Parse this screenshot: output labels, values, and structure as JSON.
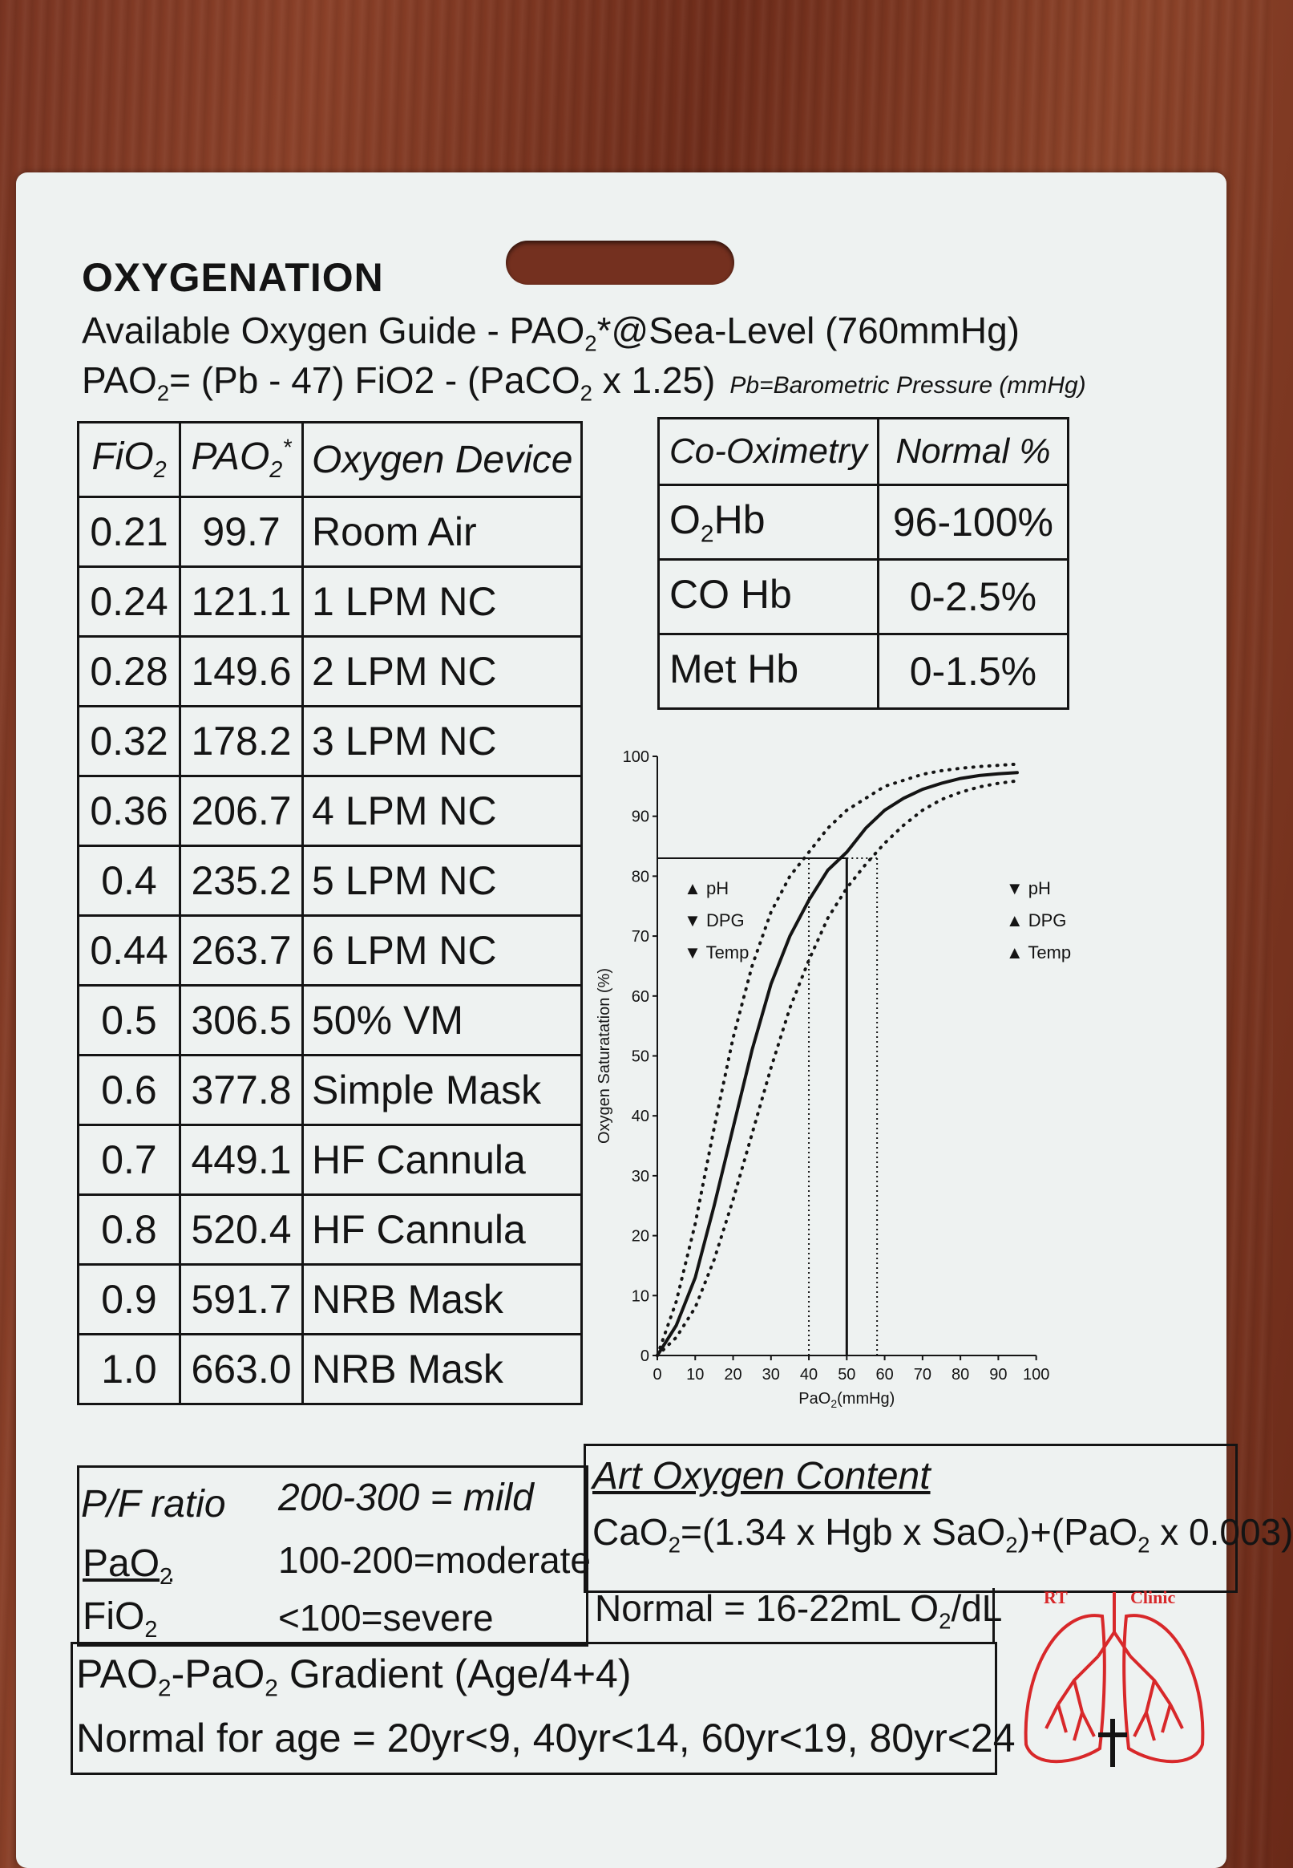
{
  "header": {
    "title": "OXYGENATION",
    "line1_prefix": "Available Oxygen Guide - PAO",
    "line1_sub": "2",
    "line1_suffix": "*@Sea-Level (760mmHg)",
    "line2_a": "PAO",
    "line2_sub1": "2",
    "line2_b": "= (Pb - 47) FiO2 - (PaCO",
    "line2_sub2": "2",
    "line2_c": " x 1.25)",
    "line2_note": "Pb=Barometric Pressure (mmHg)"
  },
  "fio_table": {
    "headers": {
      "fio": "FiO",
      "fio_sub": "2",
      "pao": "PAO",
      "pao_sub": "2",
      "pao_star": "*",
      "device": "Oxygen Device"
    },
    "rows": [
      {
        "fio": "0.21",
        "pao": "99.7",
        "device": "Room Air"
      },
      {
        "fio": "0.24",
        "pao": "121.1",
        "device": "1 LPM NC"
      },
      {
        "fio": "0.28",
        "pao": "149.6",
        "device": "2 LPM NC"
      },
      {
        "fio": "0.32",
        "pao": "178.2",
        "device": "3 LPM NC"
      },
      {
        "fio": "0.36",
        "pao": "206.7",
        "device": "4 LPM NC"
      },
      {
        "fio": "0.4",
        "pao": "235.2",
        "device": "5 LPM NC"
      },
      {
        "fio": "0.44",
        "pao": "263.7",
        "device": "6 LPM NC"
      },
      {
        "fio": "0.5",
        "pao": "306.5",
        "device": "50% VM"
      },
      {
        "fio": "0.6",
        "pao": "377.8",
        "device": "Simple Mask"
      },
      {
        "fio": "0.7",
        "pao": "449.1",
        "device": "HF Cannula"
      },
      {
        "fio": "0.8",
        "pao": "520.4",
        "device": "HF Cannula"
      },
      {
        "fio": "0.9",
        "pao": "591.7",
        "device": "NRB Mask"
      },
      {
        "fio": "1.0",
        "pao": "663.0",
        "device": "NRB Mask"
      }
    ]
  },
  "cooximetry": {
    "headers": {
      "name": "Co-Oximetry",
      "normal": "Normal %"
    },
    "rows": [
      {
        "name_a": "O",
        "name_sub": "2",
        "name_b": "Hb",
        "normal": "96-100%"
      },
      {
        "name_a": "CO Hb",
        "name_sub": "",
        "name_b": "",
        "normal": "0-2.5%"
      },
      {
        "name_a": "Met Hb",
        "name_sub": "",
        "name_b": "",
        "normal": "0-1.5%"
      }
    ]
  },
  "chart_data": {
    "type": "line",
    "xlabel": "PaO2(mmHg)",
    "xlabel_main": "PaO",
    "xlabel_sub": "2",
    "xlabel_unit": "(mmHg)",
    "ylabel": "Oxygen Saturatation (%)",
    "xlim": [
      0,
      100
    ],
    "ylim": [
      0,
      100
    ],
    "x_ticks": [
      0,
      10,
      20,
      30,
      40,
      50,
      60,
      70,
      80,
      90,
      100
    ],
    "y_ticks": [
      0,
      10,
      20,
      30,
      40,
      50,
      60,
      70,
      80,
      90,
      100
    ],
    "series": [
      {
        "style": "solid",
        "x": [
          0,
          5,
          10,
          15,
          20,
          25,
          30,
          35,
          40,
          45,
          50,
          55,
          60,
          65,
          70,
          75,
          80,
          85,
          90,
          95
        ],
        "values": [
          0,
          5,
          13,
          25,
          38,
          51,
          62,
          70,
          76,
          81,
          84,
          88,
          91,
          93,
          94.5,
          95.5,
          96.3,
          96.8,
          97.1,
          97.3
        ]
      },
      {
        "style": "dotted",
        "x": [
          0,
          5,
          10,
          15,
          20,
          25,
          30,
          35,
          40,
          45,
          50,
          55,
          60,
          65,
          70,
          75,
          80,
          85,
          90,
          95
        ],
        "values": [
          0,
          9,
          22,
          38,
          53,
          65,
          74,
          80,
          84,
          88,
          91,
          93,
          95,
          96,
          97,
          97.6,
          98,
          98.3,
          98.5,
          98.7
        ]
      },
      {
        "style": "dotted",
        "x": [
          0,
          5,
          10,
          15,
          20,
          25,
          30,
          35,
          40,
          45,
          50,
          55,
          60,
          65,
          70,
          75,
          80,
          85,
          90,
          95
        ],
        "values": [
          0,
          3,
          8,
          16,
          26,
          37,
          48,
          58,
          66,
          73,
          78,
          82,
          85.5,
          88.5,
          91,
          92.8,
          94,
          94.9,
          95.5,
          95.9
        ]
      }
    ],
    "reference": {
      "y": 83,
      "x_left": 40,
      "x_mid": 50,
      "x_right": 58
    },
    "annotations_left": [
      {
        "arrow": "▲",
        "text": "pH"
      },
      {
        "arrow": "▼",
        "text": "DPG"
      },
      {
        "arrow": "▼",
        "text": "Temp"
      }
    ],
    "annotations_right": [
      {
        "arrow": "▼",
        "text": "pH"
      },
      {
        "arrow": "▲",
        "text": "DPG"
      },
      {
        "arrow": "▲",
        "text": "Temp"
      }
    ]
  },
  "pf_ratio": {
    "label": "P/F ratio",
    "numer_a": "PaO",
    "numer_sub": "2",
    "denom_a": "FiO",
    "denom_sub": "2",
    "mild": "200-300 = mild",
    "moderate": "100-200=moderate",
    "severe": "<100=severe"
  },
  "art_content": {
    "title": "Art Oxygen Content",
    "f_a": "CaO",
    "f_sub1": "2",
    "f_b": "=(1.34 x Hgb x SaO",
    "f_sub2": "2",
    "f_c": ")+(PaO",
    "f_sub3": "2",
    "f_d": " x 0.003)",
    "normal_a": "Normal = 16-22mL O",
    "normal_sub": "2",
    "normal_b": "/dL"
  },
  "gradient": {
    "l1_a": "PAO",
    "l1_sub1": "2",
    "l1_b": "-PaO",
    "l1_sub2": "2",
    "l1_c": " Gradient (Age/4+4)",
    "l2": "Normal for age = 20yr<9, 40yr<14, 60yr<19, 80yr<24"
  },
  "logo": {
    "text_left": "RT",
    "text_right": "Clinic",
    "color": "#d8282a"
  }
}
